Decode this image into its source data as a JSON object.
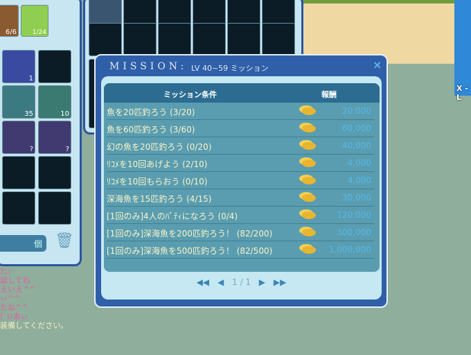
{
  "dialog": {
    "title": "MISSION:",
    "subtitle": "LV 40~59 ミッション",
    "close_icon": "×",
    "col_condition": "ミッション条件",
    "col_reward": "報酬",
    "missions": [
      {
        "text": "魚を20匹釣ろう (3/20)",
        "reward": "20,000"
      },
      {
        "text": "魚を60匹釣ろう (3/60)",
        "reward": "60,000"
      },
      {
        "text": "幻の魚を20匹釣ろう (0/20)",
        "reward": "40,000"
      },
      {
        "text": "ﾘｺﾒを10回あげよう (2/10)",
        "reward": "4,000"
      },
      {
        "text": "ﾘｺﾒを10回もらおう (0/10)",
        "reward": "4,000"
      },
      {
        "text": "深海魚を15匹釣ろう (4/15)",
        "reward": "30,000"
      },
      {
        "text": "[1回のみ]4人のﾊﾟﾃｨになろう (0/4)",
        "reward": "120,000"
      },
      {
        "text": "[1回のみ]深海魚を200匹釣ろう！ (82/200)",
        "reward": "300,000"
      },
      {
        "text": "[1回のみ]深海魚を500匹釣ろう！ (82/500)",
        "reward": "1,000,000"
      }
    ],
    "pager": {
      "first": "◀◀",
      "prev": "◀",
      "page": "1 / 1",
      "next": "▶",
      "last": "▶▶"
    }
  },
  "inventory": {
    "top_counts": [
      "6/6",
      "1/24"
    ],
    "slot_counts": [
      "1",
      "35",
      "10",
      "?",
      "?"
    ],
    "count_unit": "個",
    "trash_icon": "🗑"
  },
  "chat": [
    "ｱﾆﾝ",
    "認してね",
    "えいえ^^",
    "ぃ^^",
    "たね^^",
    "(ﾟ)ﾉあぃ",
    "装備してください。"
  ],
  "side_label": "X -L"
}
